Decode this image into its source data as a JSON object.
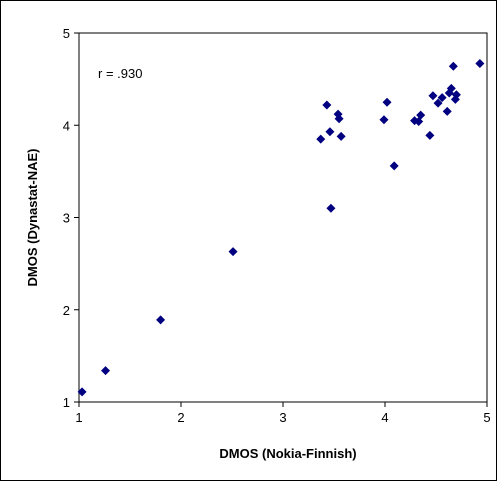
{
  "chart_data": {
    "type": "scatter",
    "title": "",
    "xlabel": "DMOS (Nokia-Finnish)",
    "ylabel": "DMOS (Dynastat-NAE)",
    "xlim": [
      1,
      5
    ],
    "ylim": [
      1,
      5
    ],
    "x_ticks": [
      "1",
      "2",
      "3",
      "4",
      "5"
    ],
    "y_ticks": [
      "1",
      "2",
      "3",
      "4",
      "5"
    ],
    "grid": false,
    "legend": "none",
    "annotation": "r = .930",
    "marker": "diamond",
    "marker_color": "#000080",
    "points": [
      {
        "x": 1.03,
        "y": 1.11
      },
      {
        "x": 1.26,
        "y": 1.34
      },
      {
        "x": 1.8,
        "y": 1.89
      },
      {
        "x": 2.51,
        "y": 2.63
      },
      {
        "x": 3.37,
        "y": 3.85
      },
      {
        "x": 3.43,
        "y": 4.22
      },
      {
        "x": 3.46,
        "y": 3.93
      },
      {
        "x": 3.47,
        "y": 3.1
      },
      {
        "x": 3.54,
        "y": 4.12
      },
      {
        "x": 3.55,
        "y": 4.07
      },
      {
        "x": 3.57,
        "y": 3.88
      },
      {
        "x": 3.99,
        "y": 4.06
      },
      {
        "x": 4.02,
        "y": 4.25
      },
      {
        "x": 4.09,
        "y": 3.56
      },
      {
        "x": 4.29,
        "y": 4.05
      },
      {
        "x": 4.33,
        "y": 4.04
      },
      {
        "x": 4.35,
        "y": 4.11
      },
      {
        "x": 4.44,
        "y": 3.89
      },
      {
        "x": 4.47,
        "y": 4.32
      },
      {
        "x": 4.52,
        "y": 4.24
      },
      {
        "x": 4.56,
        "y": 4.3
      },
      {
        "x": 4.61,
        "y": 4.15
      },
      {
        "x": 4.63,
        "y": 4.35
      },
      {
        "x": 4.65,
        "y": 4.4
      },
      {
        "x": 4.67,
        "y": 4.64
      },
      {
        "x": 4.69,
        "y": 4.28
      },
      {
        "x": 4.7,
        "y": 4.33
      },
      {
        "x": 4.93,
        "y": 4.67
      }
    ]
  }
}
